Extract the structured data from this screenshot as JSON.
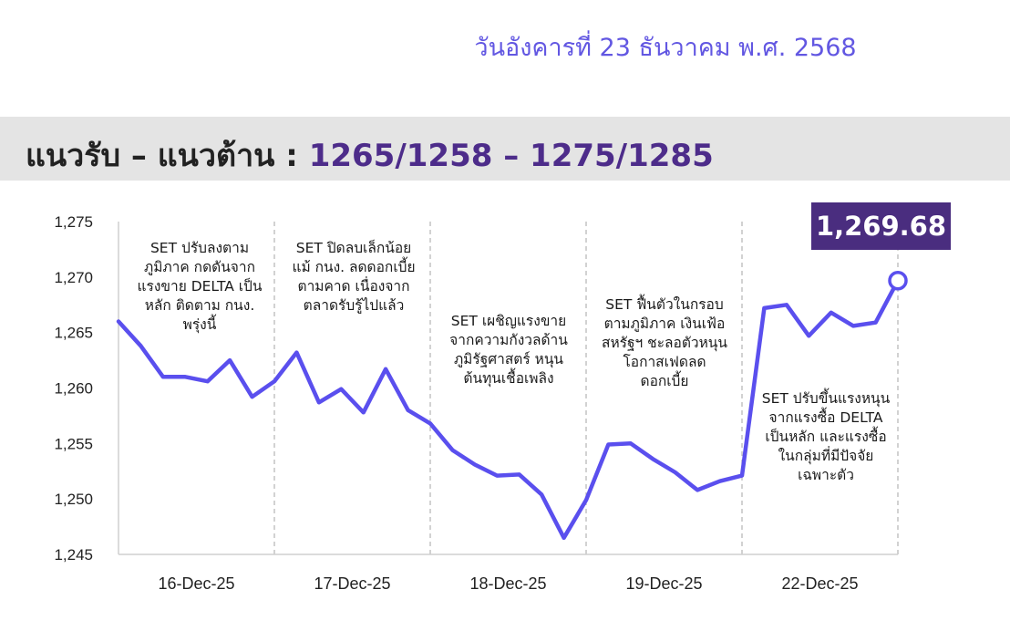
{
  "header": {
    "date": "วันอังคารที่ 23 ธันวาคม พ.ศ. 2568",
    "banner_title": "แนวรับ – แนวต้าน : ",
    "banner_levels": "1265/1258 – 1275/1285"
  },
  "colors": {
    "line": "#5a4fee",
    "accent_box": "#4a2d7f",
    "banner_bg": "#e4e4e4",
    "date_text": "#6257e2"
  },
  "chart_data": {
    "type": "line",
    "title": "",
    "xlabel": "",
    "ylabel": "",
    "ylim": [
      1245,
      1275
    ],
    "yticks": [
      1275,
      1270,
      1265,
      1260,
      1255,
      1250,
      1245
    ],
    "ytick_labels": [
      "1,275",
      "1,270",
      "1,265",
      "1,260",
      "1,255",
      "1,250",
      "1,245"
    ],
    "day_labels": [
      "16-Dec-25",
      "17-Dec-25",
      "18-Dec-25",
      "19-Dec-25",
      "22-Dec-25"
    ],
    "last_value_label": "1,269.68",
    "series": [
      {
        "values": [
          [
            1266.0,
            1263.8,
            1261.0,
            1261.0,
            1260.6,
            1262.5,
            1259.2,
            1260.6
          ],
          [
            1260.6,
            1263.2,
            1258.7,
            1259.9,
            1257.8,
            1261.7,
            1258.0,
            1256.8
          ],
          [
            1256.8,
            1254.4,
            1253.1,
            1252.1,
            1252.2,
            1250.4,
            1246.5,
            1249.9
          ],
          [
            1249.9,
            1254.9,
            1255.0,
            1253.6,
            1252.4,
            1250.8,
            1251.6,
            1252.1
          ],
          [
            1252.1,
            1267.2,
            1267.5,
            1264.7,
            1266.8,
            1265.6,
            1265.9,
            1269.68
          ]
        ]
      }
    ],
    "annotations": [
      "SET ปรับลงตาม\nภูมิภาค กดดันจาก\nแรงขาย DELTA เป็น\nหลัก ติดตาม กนง.\nพรุ่งนี้",
      "SET ปิดลบเล็กน้อย\nแม้ กนง. ลดดอกเบี้ย\nตามคาด เนื่องจาก\nตลาดรับรู้ไปแล้ว",
      "SET เผชิญแรงขาย\nจากความกังวลด้าน\nภูมิรัฐศาสตร์ หนุน\nต้นทุนเชื้อเพลิง",
      "SET ฟื้นตัวในกรอบ\nตามภูมิภาค เงินเฟ้อ\nสหรัฐฯ ชะลอตัวหนุน\nโอกาสเฟดลด\nดอกเบี้ย",
      "SET ปรับขึ้นแรงหนุน\nจากแรงซื้อ DELTA\nเป็นหลัก และแรงซื้อ\nในกลุ่มที่มีปัจจัย\nเฉพาะตัว"
    ]
  }
}
